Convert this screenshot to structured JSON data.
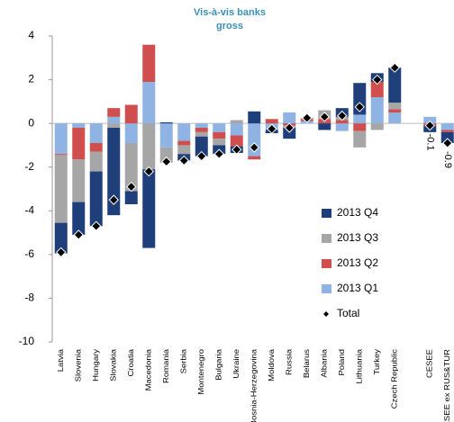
{
  "chart_data": {
    "type": "bar",
    "stacked": true,
    "title": "Vis-à-vis banks",
    "subtitle": "gross",
    "categories": [
      "Latvia",
      "Slovenia",
      "Hungary",
      "Slovakia",
      "Croatia",
      "Macedonia",
      "Romania",
      "Serbia",
      "Montenegro",
      "Bulgaria",
      "Ukraine",
      "Bosnia-Herzegovina",
      "Moldova",
      "Russia",
      "Belarus",
      "Albania",
      "Poland",
      "Lithuania",
      "Turkey",
      "Czech Republic",
      null,
      "CESEE",
      "CESEE ex RUS&TUR"
    ],
    "series": [
      {
        "name": "2013 Q4",
        "color": "#1f3f7a",
        "values": [
          -1.4,
          -1.5,
          -2.5,
          -4.0,
          -0.6,
          -3.6,
          0.05,
          -0.3,
          -0.9,
          -0.4,
          -0.3,
          0.55,
          -0.15,
          -0.5,
          0.0,
          -0.3,
          0.4,
          1.45,
          0.4,
          1.6,
          null,
          -0.3,
          -0.5
        ]
      },
      {
        "name": "2013 Q3",
        "color": "#a6a6a6",
        "values": [
          -3.1,
          -1.95,
          -0.9,
          -0.2,
          -2.2,
          -2.1,
          -0.7,
          -0.4,
          -0.2,
          -0.3,
          0.15,
          0.0,
          0.0,
          -0.1,
          0.05,
          0.4,
          0.15,
          -0.75,
          -0.3,
          0.3,
          null,
          0.0,
          0.0
        ]
      },
      {
        "name": "2013 Q2",
        "color": "#d04e4e",
        "values": [
          -0.05,
          -1.45,
          -0.4,
          0.4,
          0.85,
          1.7,
          0.0,
          -0.2,
          -0.2,
          -0.3,
          -0.5,
          -0.15,
          0.2,
          -0.1,
          0.1,
          0.2,
          0.15,
          -0.35,
          0.7,
          0.15,
          null,
          -0.1,
          -0.1
        ]
      },
      {
        "name": "2013 Q1",
        "color": "#8fb4e3",
        "values": [
          -1.4,
          -0.2,
          -0.9,
          0.3,
          -0.9,
          1.9,
          -1.1,
          -0.8,
          -0.2,
          -0.4,
          -0.55,
          -1.5,
          -0.3,
          0.5,
          0.1,
          0.0,
          -0.35,
          0.4,
          1.2,
          0.5,
          null,
          0.3,
          -0.3
        ]
      }
    ],
    "total": {
      "name": "Total",
      "color": "#000000",
      "values": [
        -5.9,
        -5.1,
        -4.7,
        -3.5,
        -2.9,
        -2.2,
        -1.75,
        -1.7,
        -1.5,
        -1.4,
        -1.2,
        -1.1,
        -0.25,
        -0.2,
        0.25,
        0.3,
        0.35,
        0.75,
        2.0,
        2.55,
        null,
        -0.1,
        -0.9
      ],
      "value_labels": [
        null,
        null,
        null,
        null,
        null,
        null,
        null,
        null,
        null,
        null,
        null,
        null,
        null,
        null,
        null,
        null,
        null,
        null,
        null,
        null,
        null,
        "-0.1",
        "-0.9"
      ]
    },
    "ylim": [
      -10,
      4
    ],
    "yticks": [
      -10,
      -8,
      -6,
      -4,
      -2,
      0,
      2,
      4
    ],
    "grid": false,
    "legend": "right"
  }
}
